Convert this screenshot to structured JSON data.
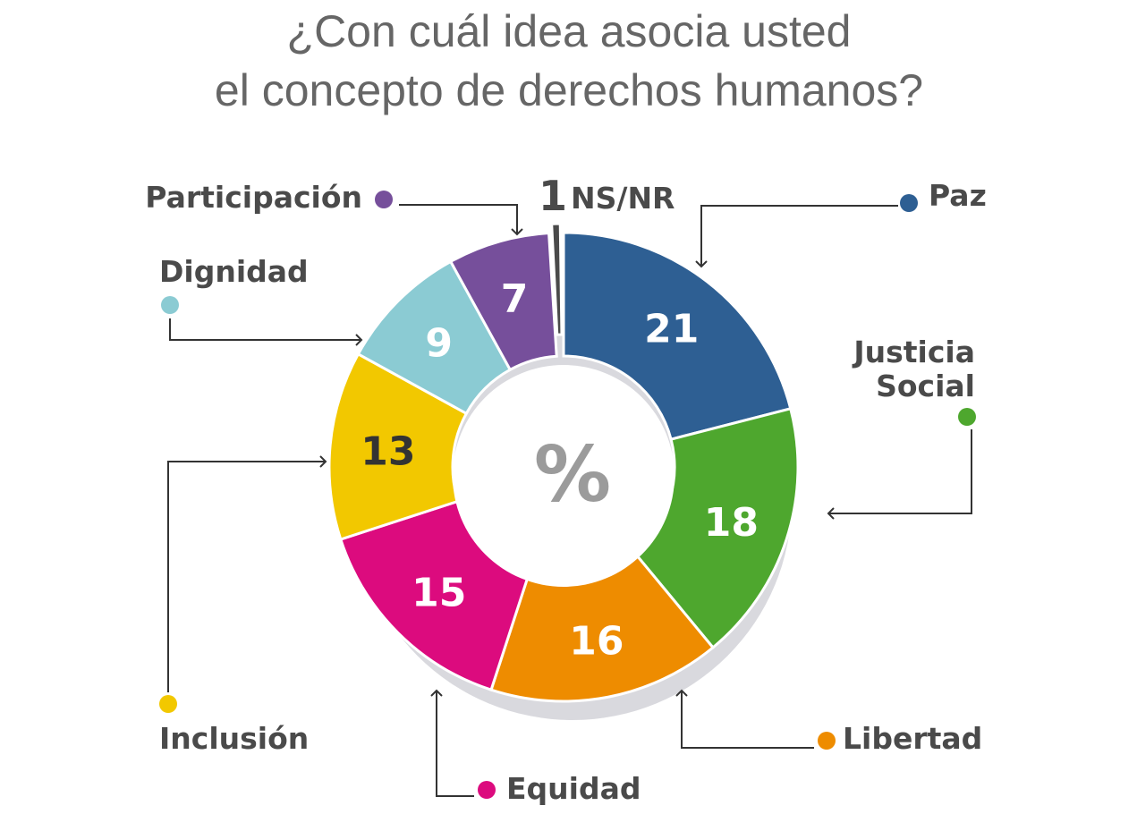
{
  "chart_data": {
    "type": "pie",
    "title_lines": [
      "¿Con cuál idea asocia usted",
      "el concepto de derechos humanos?"
    ],
    "center_label": "%",
    "slices": [
      {
        "key": "paz",
        "label": "Paz",
        "value": 21,
        "color": "#2e5f93",
        "text_color": "#ffffff"
      },
      {
        "key": "justicia",
        "label": "Justicia Social",
        "label_lines": [
          "Justicia",
          "Social"
        ],
        "value": 18,
        "color": "#4ea72e",
        "text_color": "#ffffff"
      },
      {
        "key": "libertad",
        "label": "Libertad",
        "value": 16,
        "color": "#ee8c00",
        "text_color": "#ffffff"
      },
      {
        "key": "equidad",
        "label": "Equidad",
        "value": 15,
        "color": "#dc0b7e",
        "text_color": "#ffffff"
      },
      {
        "key": "inclusion",
        "label": "Inclusión",
        "value": 13,
        "color": "#f2c800",
        "text_color": "#333333"
      },
      {
        "key": "dignidad",
        "label": "Dignidad",
        "value": 9,
        "color": "#8bcbd3",
        "text_color": "#ffffff"
      },
      {
        "key": "participacion",
        "label": "Participación",
        "value": 7,
        "color": "#764f9b",
        "text_color": "#ffffff"
      },
      {
        "key": "nsnr",
        "label": "NS/NR",
        "value": 1,
        "color": "#4a4a4a",
        "text_color": "#4a4a4a"
      }
    ]
  }
}
